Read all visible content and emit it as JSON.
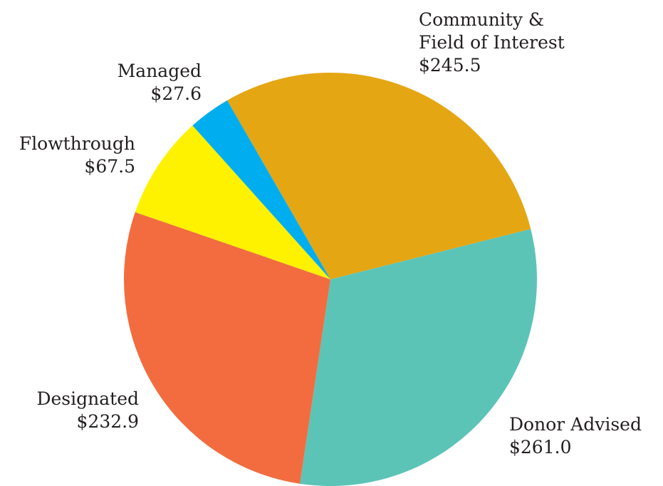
{
  "chart_data": {
    "type": "pie",
    "categories": [
      "Community & Field of Interest",
      "Donor Advised",
      "Designated",
      "Flowthrough",
      "Managed"
    ],
    "values": [
      245.5,
      261.0,
      232.9,
      67.5,
      27.6
    ],
    "value_labels": [
      "$245.5",
      "$261.0",
      "$232.9",
      "$67.5",
      "$27.6"
    ],
    "colors": [
      "#e5a614",
      "#5bc4b7",
      "#f26c3f",
      "#fff200",
      "#00aeef"
    ]
  }
}
